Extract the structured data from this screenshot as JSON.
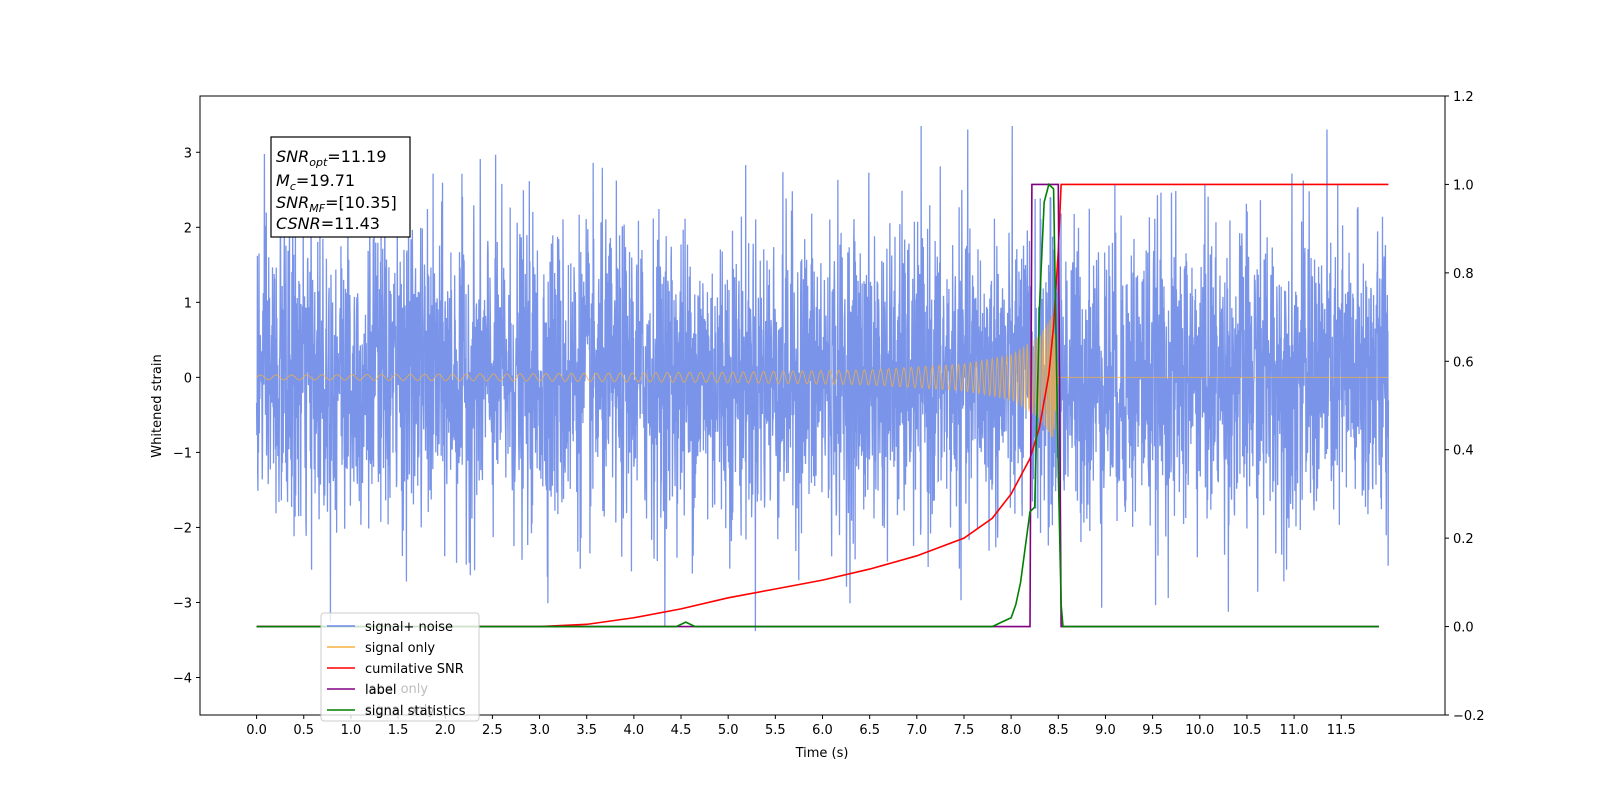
{
  "chart_data": {
    "type": "line",
    "xlabel": "Time (s)",
    "ylabel": "Whitened strain",
    "xlim": [
      -0.6,
      12.6
    ],
    "ylim": [
      -4.5,
      3.75
    ],
    "ylim_right": [
      -0.2,
      1.2
    ],
    "x_ticks": [
      "0.0",
      "0.5",
      "1.0",
      "1.5",
      "2.0",
      "2.5",
      "3.0",
      "3.5",
      "4.0",
      "4.5",
      "5.0",
      "5.5",
      "6.0",
      "6.5",
      "7.0",
      "7.5",
      "8.0",
      "8.5",
      "9.0",
      "9.5",
      "10.0",
      "10.5",
      "11.0",
      "11.5"
    ],
    "y_ticks_left": [
      "3",
      "2",
      "1",
      "0",
      "−1",
      "−2",
      "−3",
      "−4"
    ],
    "y_ticks_right": [
      "1.2",
      "1.0",
      "0.8",
      "0.6",
      "0.4",
      "0.2",
      "0.0",
      "−0.2"
    ],
    "annotation": {
      "snr_opt": {
        "base": "SNR",
        "sub": "opt",
        "value": "=11.19"
      },
      "mc": {
        "base": "M",
        "sub": "c",
        "value": "=19.71"
      },
      "snr_mf": {
        "base": "SNR",
        "sub": "MF",
        "value": "=[10.35]"
      },
      "csnr": {
        "base": "CSNR",
        "value": "=11.43"
      }
    },
    "legend": {
      "position": "lower-left",
      "entries": [
        "signal+ noise",
        "signal only",
        "cumilative SNR",
        "label",
        "signal statistics"
      ],
      "obscured_text": [
        "label only",
        "signal only"
      ]
    },
    "series": [
      {
        "name": "signal+ noise",
        "axis": "left",
        "color": "#6a88e6",
        "kind": "noise",
        "x_range": [
          0.0,
          12.0
        ],
        "typical_amplitude": 1.0,
        "extremes": [
          -4.1,
          3.35
        ]
      },
      {
        "name": "signal only",
        "axis": "left",
        "color": "#f5b040",
        "kind": "chirp",
        "x_range": [
          0.0,
          12.0
        ],
        "merger_time": 8.5,
        "envelope": [
          [
            0.0,
            0.03
          ],
          [
            3.0,
            0.05
          ],
          [
            5.0,
            0.07
          ],
          [
            6.5,
            0.1
          ],
          [
            7.5,
            0.18
          ],
          [
            8.0,
            0.3
          ],
          [
            8.3,
            0.55
          ],
          [
            8.45,
            0.85
          ],
          [
            8.5,
            0.0
          ]
        ]
      },
      {
        "name": "cumilative SNR",
        "axis": "right",
        "color": "#ff0000",
        "points": [
          [
            0.0,
            0.0
          ],
          [
            3.0,
            0.0
          ],
          [
            3.5,
            0.005
          ],
          [
            4.0,
            0.02
          ],
          [
            4.5,
            0.04
          ],
          [
            5.0,
            0.065
          ],
          [
            5.5,
            0.085
          ],
          [
            6.0,
            0.105
          ],
          [
            6.5,
            0.13
          ],
          [
            7.0,
            0.16
          ],
          [
            7.5,
            0.2
          ],
          [
            7.8,
            0.245
          ],
          [
            8.0,
            0.3
          ],
          [
            8.2,
            0.38
          ],
          [
            8.3,
            0.45
          ],
          [
            8.4,
            0.57
          ],
          [
            8.45,
            0.68
          ],
          [
            8.5,
            0.85
          ],
          [
            8.53,
            1.0
          ],
          [
            12.0,
            1.0
          ]
        ]
      },
      {
        "name": "label",
        "axis": "right",
        "color": "#800080",
        "points": [
          [
            0.0,
            0.0
          ],
          [
            8.2,
            0.0
          ],
          [
            8.22,
            1.0
          ],
          [
            8.5,
            1.0
          ],
          [
            8.53,
            0.0
          ],
          [
            11.9,
            0.0
          ]
        ]
      },
      {
        "name": "signal statistics",
        "axis": "right",
        "color": "#008000",
        "points": [
          [
            0.0,
            0.0
          ],
          [
            4.45,
            0.0
          ],
          [
            4.55,
            0.01
          ],
          [
            4.65,
            0.0
          ],
          [
            7.8,
            0.0
          ],
          [
            7.9,
            0.01
          ],
          [
            8.0,
            0.02
          ],
          [
            8.05,
            0.05
          ],
          [
            8.1,
            0.1
          ],
          [
            8.15,
            0.18
          ],
          [
            8.2,
            0.26
          ],
          [
            8.25,
            0.27
          ],
          [
            8.3,
            0.72
          ],
          [
            8.35,
            0.96
          ],
          [
            8.4,
            1.0
          ],
          [
            8.45,
            0.99
          ],
          [
            8.5,
            0.35
          ],
          [
            8.53,
            0.05
          ],
          [
            8.55,
            0.0
          ],
          [
            11.9,
            0.0
          ]
        ]
      }
    ]
  }
}
